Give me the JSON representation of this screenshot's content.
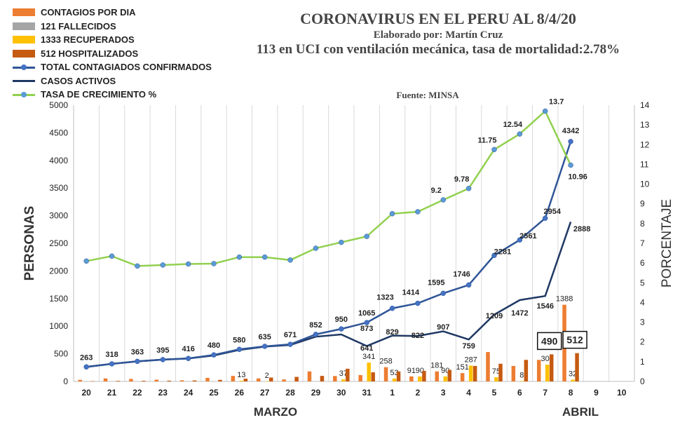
{
  "header": {
    "title": "CORONAVIRUS EN EL PERU AL 8/4/20",
    "subtitle": "Elaborado por: Martín Cruz",
    "note": "113 en UCI con ventilación mecánica, tasa de mortalidad:2.78%",
    "source": "Fuente: MINSA"
  },
  "legend": [
    {
      "label": "CONTAGIOS POR DIA",
      "kind": "box",
      "color": "#ED7D31"
    },
    {
      "label": "121 FALLECIDOS",
      "kind": "box",
      "color": "#A5A5A5"
    },
    {
      "label": "1333 RECUPERADOS",
      "kind": "box",
      "color": "#FFC000"
    },
    {
      "label": "512 HOSPITALIZADOS",
      "kind": "box",
      "color": "#C55A11"
    },
    {
      "label": "TOTAL CONTAGIADOS CONFIRMADOS",
      "kind": "line-dot",
      "color": "#2F5597",
      "marker": "#4472C4"
    },
    {
      "label": "CASOS ACTIVOS",
      "kind": "line",
      "color": "#1F3864"
    },
    {
      "label": "TASA DE CRECIMIENTO %",
      "kind": "line-dot",
      "color": "#92D050",
      "marker": "#5B9BD5"
    }
  ],
  "chart_data": {
    "type": "bar",
    "categories": [
      "20",
      "21",
      "22",
      "23",
      "24",
      "25",
      "26",
      "27",
      "28",
      "29",
      "30",
      "31",
      "1",
      "2",
      "3",
      "4",
      "5",
      "6",
      "7",
      "8",
      "9",
      "10"
    ],
    "xgroups": [
      "MARZO",
      "ABRIL"
    ],
    "ylabel": "PERSONAS",
    "y2label": "PORCENTAJE",
    "ylim": [
      0,
      5000
    ],
    "y2lim": [
      0,
      14
    ],
    "yticks": [
      0,
      500,
      1000,
      1500,
      2000,
      2500,
      3000,
      3500,
      4000,
      4500,
      5000
    ],
    "y2ticks": [
      0,
      1,
      2,
      3,
      4,
      5,
      6,
      7,
      8,
      9,
      10,
      11,
      12,
      13,
      14
    ],
    "grid": "vertical",
    "series": [
      {
        "name": "CONTAGIOS POR DIA",
        "type": "bar",
        "color": "#ED7D31",
        "values": [
          29,
          55,
          45,
          32,
          21,
          64,
          100,
          55,
          36,
          181,
          98,
          115,
          258,
          91,
          181,
          151,
          532,
          280,
          390,
          1388,
          null,
          null
        ],
        "labels": [
          null,
          null,
          null,
          null,
          null,
          null,
          null,
          null,
          null,
          null,
          null,
          null,
          "258",
          "91",
          "181",
          "151",
          null,
          null,
          null,
          "1388",
          null,
          null
        ]
      },
      {
        "name": "121 FALLECIDOS",
        "type": "bar",
        "color": "#A5A5A5",
        "values": [
          null,
          null,
          null,
          null,
          null,
          null,
          null,
          null,
          null,
          null,
          null,
          null,
          null,
          null,
          null,
          null,
          null,
          null,
          null,
          null,
          null,
          null
        ]
      },
      {
        "name": "1333 RECUPERADOS",
        "type": "bar",
        "color": "#FFC000",
        "values": [
          null,
          null,
          null,
          null,
          null,
          null,
          13,
          2,
          null,
          null,
          37,
          341,
          53,
          90,
          90,
          287,
          75,
          8,
          304,
          32,
          null,
          null
        ],
        "labels": [
          null,
          null,
          null,
          null,
          null,
          null,
          "13",
          "2",
          null,
          null,
          "37",
          "341",
          "53",
          "90",
          "90",
          "287",
          "75",
          "8",
          "304",
          "32",
          null,
          null
        ]
      },
      {
        "name": "512 HOSPITALIZADOS",
        "type": "bar",
        "color": "#C55A11",
        "values": [
          5,
          10,
          12,
          14,
          18,
          28,
          50,
          70,
          82,
          100,
          230,
          165,
          180,
          190,
          210,
          280,
          320,
          390,
          490,
          512,
          null,
          null
        ],
        "labels": [
          null,
          null,
          null,
          null,
          null,
          null,
          null,
          null,
          null,
          null,
          null,
          null,
          null,
          null,
          null,
          null,
          null,
          null,
          "490",
          "512",
          null,
          null
        ]
      },
      {
        "name": "TOTAL CONTAGIADOS CONFIRMADOS",
        "type": "line",
        "color": "#2F5597",
        "values": [
          263,
          318,
          363,
          395,
          416,
          480,
          580,
          635,
          671,
          852,
          950,
          1065,
          1323,
          1414,
          1595,
          1746,
          2281,
          2561,
          2954,
          4342,
          null,
          null
        ]
      },
      {
        "name": "CASOS ACTIVOS",
        "type": "line",
        "color": "#1F3864",
        "values": [
          263,
          318,
          363,
          395,
          416,
          480,
          580,
          635,
          671,
          852,
          950,
          873,
          641,
          829,
          822,
          907,
          759,
          1209,
          1472,
          1546,
          2888,
          null
        ],
        "alt_values": [
          263,
          318,
          363,
          395,
          416,
          480,
          580,
          635,
          671,
          852,
          950,
          873,
          641,
          829,
          822,
          907,
          759,
          1209,
          1472,
          1546,
          2888
        ],
        "values_plotted": [
          263,
          318,
          363,
          395,
          416,
          470,
          570,
          630,
          660,
          810,
          850,
          641,
          829,
          822,
          907,
          759,
          1209,
          1472,
          1546,
          2888,
          null,
          null
        ],
        "labels": [
          "263",
          "318",
          "363",
          "395",
          "416",
          "480",
          "580",
          "635",
          "671",
          "852",
          "950",
          "873",
          "641",
          "829",
          "822",
          "907",
          "759",
          "1209",
          "1472",
          "1546",
          "2888",
          null
        ]
      },
      {
        "name": "TASA DE CRECIMIENTO %",
        "type": "line",
        "axis": "right",
        "color": "#92D050",
        "values": [
          6.1,
          6.35,
          5.85,
          5.9,
          5.95,
          5.97,
          6.3,
          6.3,
          6.15,
          6.75,
          7.05,
          7.35,
          8.5,
          8.6,
          9.2,
          9.78,
          11.75,
          12.54,
          13.7,
          10.96,
          null,
          null
        ],
        "labels": [
          null,
          null,
          null,
          null,
          null,
          null,
          null,
          null,
          null,
          null,
          null,
          null,
          null,
          null,
          "9.2",
          "9.78",
          "11.75",
          "12.54",
          "13.7",
          "10.96",
          null,
          null
        ]
      }
    ],
    "boxed_labels": [
      "490",
      "512"
    ]
  }
}
